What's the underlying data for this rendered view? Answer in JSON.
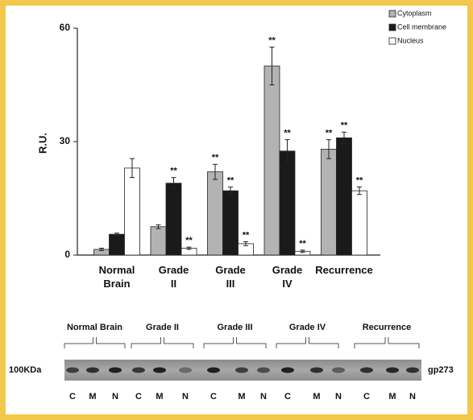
{
  "chart_data": {
    "type": "bar",
    "ylabel": "R.U.",
    "categories": [
      "Normal Brain",
      "Grade II",
      "Grade III",
      "Grade IV",
      "Recurrence"
    ],
    "series": [
      {
        "name": "Cytoplasm",
        "color": "#b3b3b3",
        "values": [
          1.5,
          7.5,
          22,
          50,
          28
        ],
        "errors": [
          0.3,
          0.5,
          2,
          5,
          2.5
        ],
        "significance": [
          null,
          null,
          "**",
          "**",
          "**"
        ]
      },
      {
        "name": "Cell membrane",
        "color": "#1a1a1a",
        "values": [
          5.5,
          19,
          17,
          27.5,
          31
        ],
        "errors": [
          0.3,
          1.5,
          1,
          3,
          1.5
        ],
        "significance": [
          null,
          "**",
          "**",
          "**",
          "**"
        ]
      },
      {
        "name": "Nucleus",
        "color": "#ffffff",
        "values": [
          23,
          1.8,
          3,
          1,
          17
        ],
        "errors": [
          2.5,
          0.3,
          0.5,
          0.3,
          1
        ],
        "significance": [
          null,
          "**",
          "**",
          "**",
          "**"
        ]
      }
    ],
    "ylim": [
      0,
      60
    ],
    "yticks": [
      0,
      30,
      60
    ],
    "grid": false,
    "legend": "top right"
  },
  "blot": {
    "marker": "100KDa",
    "protein": "gp273",
    "groups": [
      {
        "name": "Normal Brain",
        "lanes": [
          "C",
          "M",
          "N"
        ]
      },
      {
        "name": "Grade II",
        "lanes": [
          "C",
          "M",
          "N"
        ]
      },
      {
        "name": "Grade III",
        "lanes": [
          "C",
          "M",
          "N"
        ]
      },
      {
        "name": "Grade IV",
        "lanes": [
          "C",
          "M",
          "N"
        ]
      },
      {
        "name": "Recurrence",
        "lanes": [
          "C",
          "M",
          "N"
        ]
      }
    ]
  }
}
